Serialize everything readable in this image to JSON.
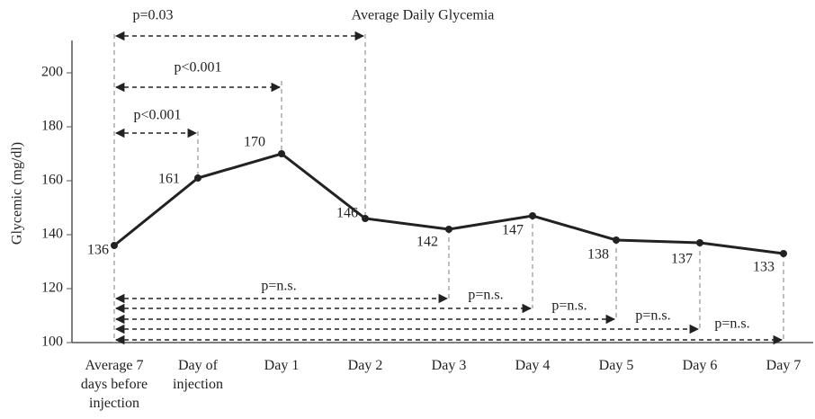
{
  "chart_data": {
    "type": "line",
    "title": "Average Daily Glycemia",
    "y_label": "Glycemic (mg/dl)",
    "categories": [
      "Average 7\ndays before\ninjection",
      "Day of\ninjection",
      "Day 1",
      "Day 2",
      "Day 3",
      "Day 4",
      "Day 5",
      "Day 6",
      "Day 7"
    ],
    "series": [
      {
        "name": "Average daily glycemia",
        "color": "#222222",
        "values": [
          136,
          161,
          170,
          146,
          142,
          147,
          138,
          137,
          133
        ]
      }
    ],
    "ylim": [
      100,
      212
    ],
    "yticks": [
      100,
      120,
      140,
      160,
      180,
      200
    ],
    "annotations": [
      "p=0.03",
      "p<0.001",
      "p<0.001",
      "p=n.s.",
      "p=n.s.",
      "p=n.s.",
      "p=n.s.",
      "p=n.s."
    ]
  }
}
